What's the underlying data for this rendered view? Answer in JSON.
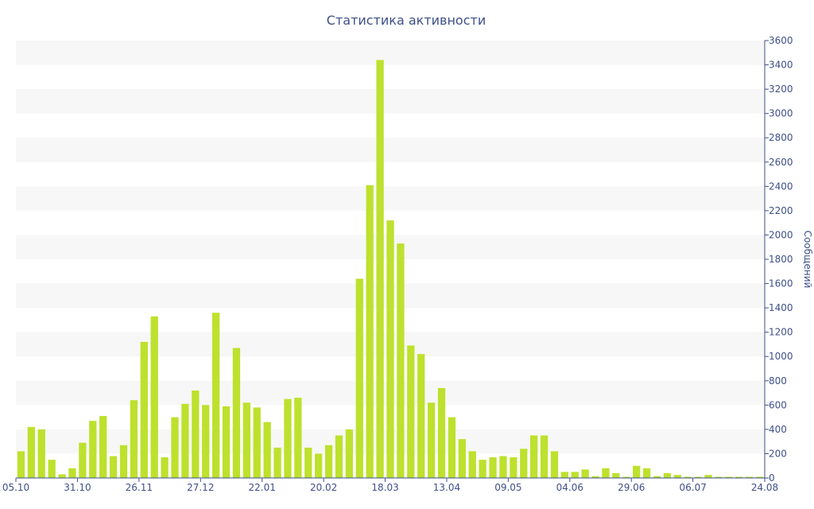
{
  "chart_data": {
    "type": "bar",
    "title": "Статистика активности",
    "xlabel": "",
    "ylabel": "Сообщений",
    "ylim": [
      0,
      3600
    ],
    "yticks": [
      0,
      200,
      400,
      600,
      800,
      1000,
      1200,
      1400,
      1600,
      1800,
      2000,
      2200,
      2400,
      2600,
      2800,
      3000,
      3200,
      3400,
      3600
    ],
    "y_axis_position": "right",
    "grid": "alternating horizontal bands",
    "legend": "none",
    "bar_color": "#bde12d",
    "text_color": "#3e4f8a",
    "band_color": "#f7f7f7",
    "x_tick_labels": [
      {
        "index": 0,
        "label": "05.10"
      },
      {
        "index": 6,
        "label": "31.10"
      },
      {
        "index": 12,
        "label": "26.11"
      },
      {
        "index": 18,
        "label": "27.12"
      },
      {
        "index": 24,
        "label": "22.01"
      },
      {
        "index": 30,
        "label": "20.02"
      },
      {
        "index": 36,
        "label": "18.03"
      },
      {
        "index": 42,
        "label": "13.04"
      },
      {
        "index": 48,
        "label": "09.05"
      },
      {
        "index": 54,
        "label": "04.06"
      },
      {
        "index": 60,
        "label": "29.06"
      },
      {
        "index": 66,
        "label": "06.07"
      },
      {
        "index": 72,
        "label": "24.08"
      }
    ],
    "values": [
      220,
      420,
      400,
      150,
      30,
      80,
      290,
      470,
      510,
      180,
      270,
      640,
      1120,
      1330,
      170,
      500,
      610,
      720,
      600,
      1360,
      590,
      1070,
      620,
      580,
      460,
      250,
      650,
      660,
      250,
      200,
      270,
      350,
      400,
      1640,
      2410,
      3440,
      2120,
      1930,
      1090,
      1020,
      620,
      740,
      500,
      320,
      220,
      150,
      170,
      180,
      170,
      240,
      350,
      350,
      220,
      50,
      50,
      70,
      15,
      80,
      40,
      10,
      100,
      80,
      15,
      40,
      25,
      10,
      10,
      25,
      10,
      10,
      10,
      10,
      10
    ]
  }
}
